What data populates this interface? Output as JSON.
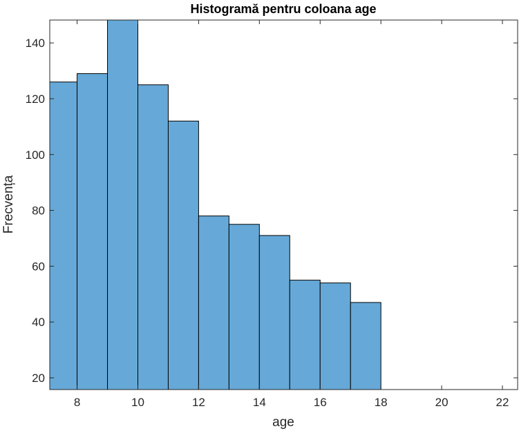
{
  "chart_data": {
    "type": "bar",
    "title": "Histogramă pentru coloana age",
    "xlabel": "age",
    "ylabel": "Frecvența",
    "bin_edges": [
      7,
      8,
      9,
      10,
      11,
      12,
      13,
      14,
      15,
      16,
      17,
      18
    ],
    "values": [
      126,
      129,
      149,
      125,
      112,
      78,
      75,
      71,
      55,
      54,
      47
    ],
    "xlim": [
      7.1,
      22.5
    ],
    "ylim": [
      15.8,
      148.2
    ],
    "xticks": [
      8,
      10,
      12,
      14,
      16,
      18,
      20,
      22
    ],
    "yticks": [
      20,
      40,
      60,
      80,
      100,
      120,
      140
    ],
    "grid": false,
    "bar_color": "#66a9d8",
    "edge_color": "#000000"
  }
}
